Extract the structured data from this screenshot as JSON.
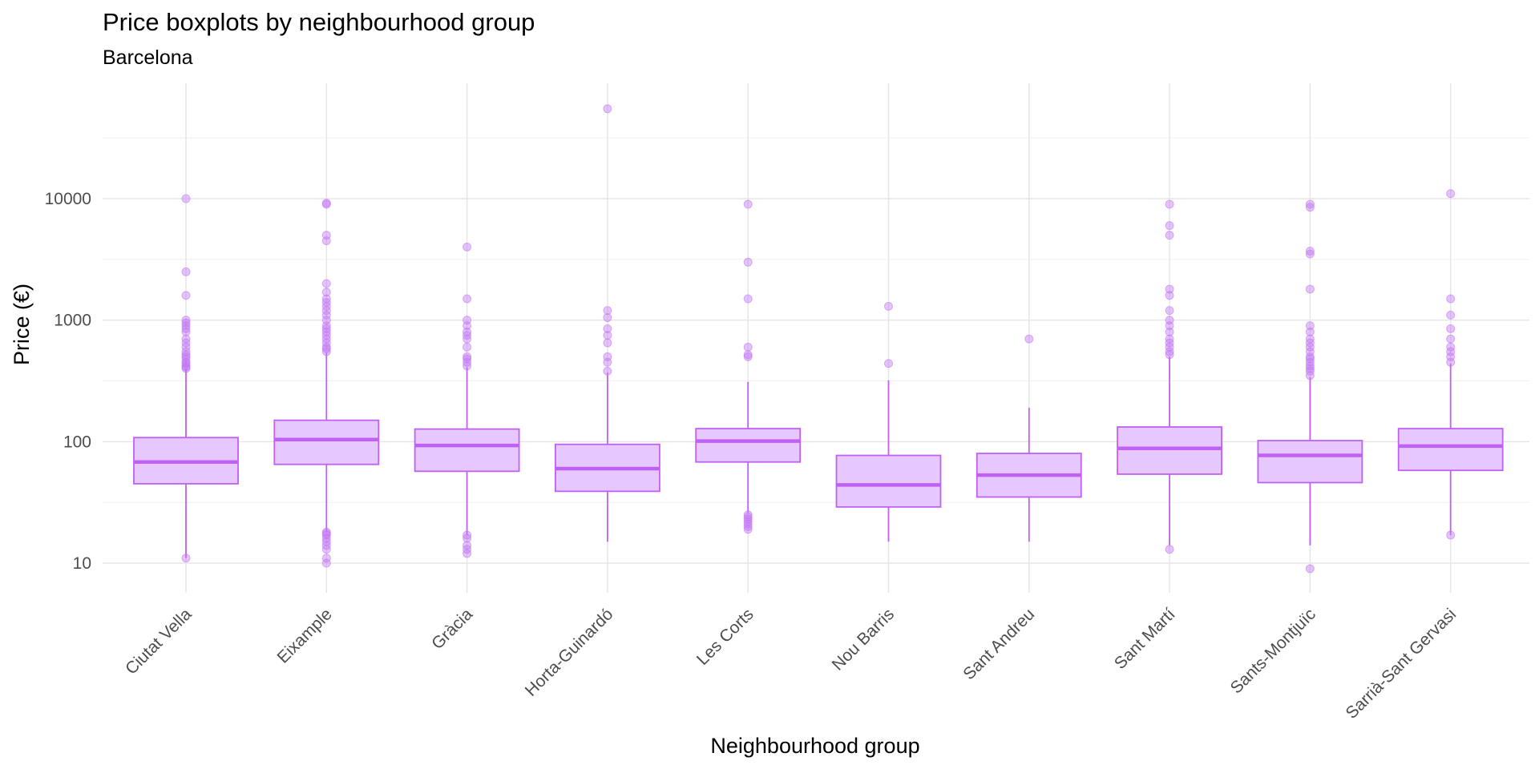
{
  "chart_data": {
    "type": "boxplot",
    "title": "Price boxplots by neighbourhood group",
    "subtitle": "Barcelona",
    "xlabel": "Neighbourhood group",
    "ylabel": "Price (€)",
    "y_scale": "log10",
    "ylim": [
      6,
      100000
    ],
    "y_ticks": [
      10,
      100,
      1000,
      10000
    ],
    "y_tick_labels": [
      "10",
      "100",
      "1000",
      "10000"
    ],
    "grid": true,
    "legend": "none",
    "colors": {
      "fill": "#e6c8ff",
      "stroke": "#c060f5",
      "outlier": "#c377f4",
      "grid_major": "#e6e6e6",
      "grid_minor": "#f2f2f2"
    },
    "categories": [
      "Ciutat Vella",
      "Eixample",
      "Gràcia",
      "Horta-Guinardó",
      "Les Corts",
      "Nou Barris",
      "Sant Andreu",
      "Sant Martí",
      "Sants-Montjuïc",
      "Sarrià-Sant Gervasi"
    ],
    "boxes": [
      {
        "whisker_low": 11,
        "q1": 45,
        "median": 68,
        "q3": 108,
        "whisker_high": 400,
        "outliers": [
          11,
          400,
          410,
          420,
          440,
          450,
          480,
          500,
          520,
          550,
          600,
          650,
          700,
          800,
          850,
          900,
          950,
          1000,
          1600,
          2500,
          10000
        ]
      },
      {
        "whisker_low": 18,
        "q1": 65,
        "median": 104,
        "q3": 150,
        "whisker_high": 540,
        "outliers": [
          10,
          11,
          13,
          14,
          15,
          16,
          17,
          17.5,
          18,
          550,
          580,
          600,
          650,
          700,
          750,
          800,
          850,
          900,
          1000,
          1100,
          1200,
          1300,
          1400,
          1500,
          1700,
          2000,
          4500,
          5000,
          9000,
          9200
        ]
      },
      {
        "whisker_low": 17,
        "q1": 57,
        "median": 93,
        "q3": 127,
        "whisker_high": 410,
        "outliers": [
          12,
          13,
          14,
          16,
          17,
          420,
          450,
          480,
          500,
          600,
          700,
          750,
          800,
          900,
          1000,
          1500,
          4000
        ]
      },
      {
        "whisker_low": 15,
        "q1": 39,
        "median": 60,
        "q3": 95,
        "whisker_high": 370,
        "outliers": [
          380,
          450,
          500,
          650,
          750,
          850,
          1050,
          1200,
          55000
        ]
      },
      {
        "whisker_low": 26,
        "q1": 68,
        "median": 101,
        "q3": 128,
        "whisker_high": 310,
        "outliers": [
          19,
          20,
          21,
          22,
          23,
          24,
          25,
          500,
          520,
          600,
          1500,
          3000,
          9000
        ]
      },
      {
        "whisker_low": 15,
        "q1": 29,
        "median": 44,
        "q3": 77,
        "whisker_high": 320,
        "outliers": [
          440,
          1300
        ]
      },
      {
        "whisker_low": 15,
        "q1": 35,
        "median": 53,
        "q3": 80,
        "whisker_high": 190,
        "outliers": [
          700
        ]
      },
      {
        "whisker_low": 14,
        "q1": 54,
        "median": 88,
        "q3": 132,
        "whisker_high": 500,
        "outliers": [
          13,
          520,
          550,
          600,
          650,
          700,
          800,
          900,
          1000,
          1200,
          1600,
          1800,
          5000,
          6000,
          9000
        ]
      },
      {
        "whisker_low": 14,
        "q1": 46,
        "median": 77,
        "q3": 102,
        "whisker_high": 340,
        "outliers": [
          9,
          350,
          380,
          400,
          420,
          450,
          480,
          500,
          550,
          600,
          650,
          700,
          800,
          900,
          1800,
          3500,
          3700,
          8500,
          9000
        ]
      },
      {
        "whisker_low": 17,
        "q1": 58,
        "median": 92,
        "q3": 128,
        "whisker_high": 440,
        "outliers": [
          17,
          450,
          500,
          550,
          600,
          700,
          850,
          1100,
          1500,
          11000
        ]
      }
    ]
  }
}
